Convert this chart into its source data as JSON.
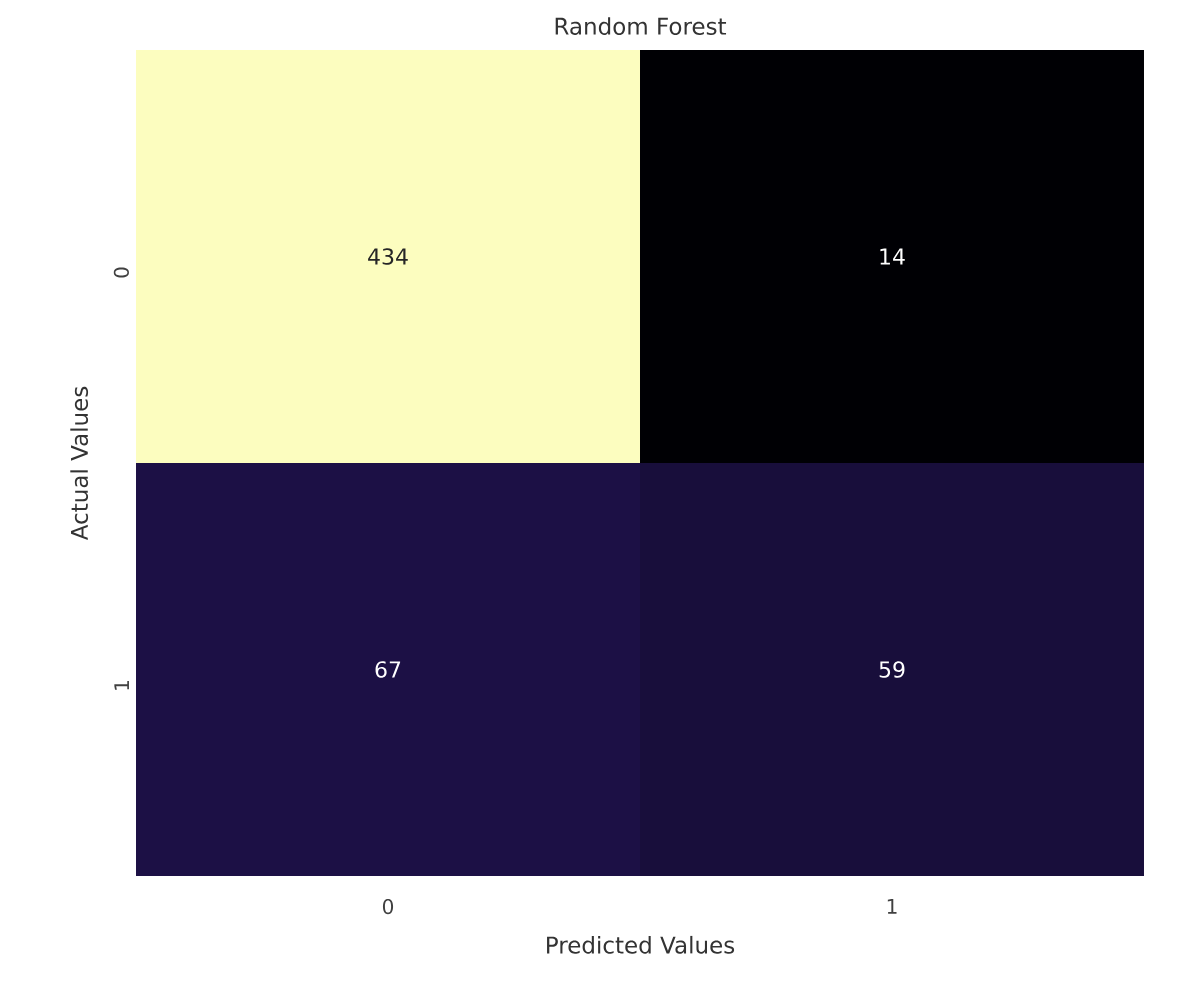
{
  "chart_data": {
    "type": "heatmap",
    "title": "Random Forest",
    "xlabel": "Predicted Values",
    "ylabel": "Actual Values",
    "categories": [
      "0",
      "1"
    ],
    "y_categories": [
      "0",
      "1"
    ],
    "cells": [
      [
        434,
        14
      ],
      [
        67,
        59
      ]
    ],
    "data_labels": true
  }
}
